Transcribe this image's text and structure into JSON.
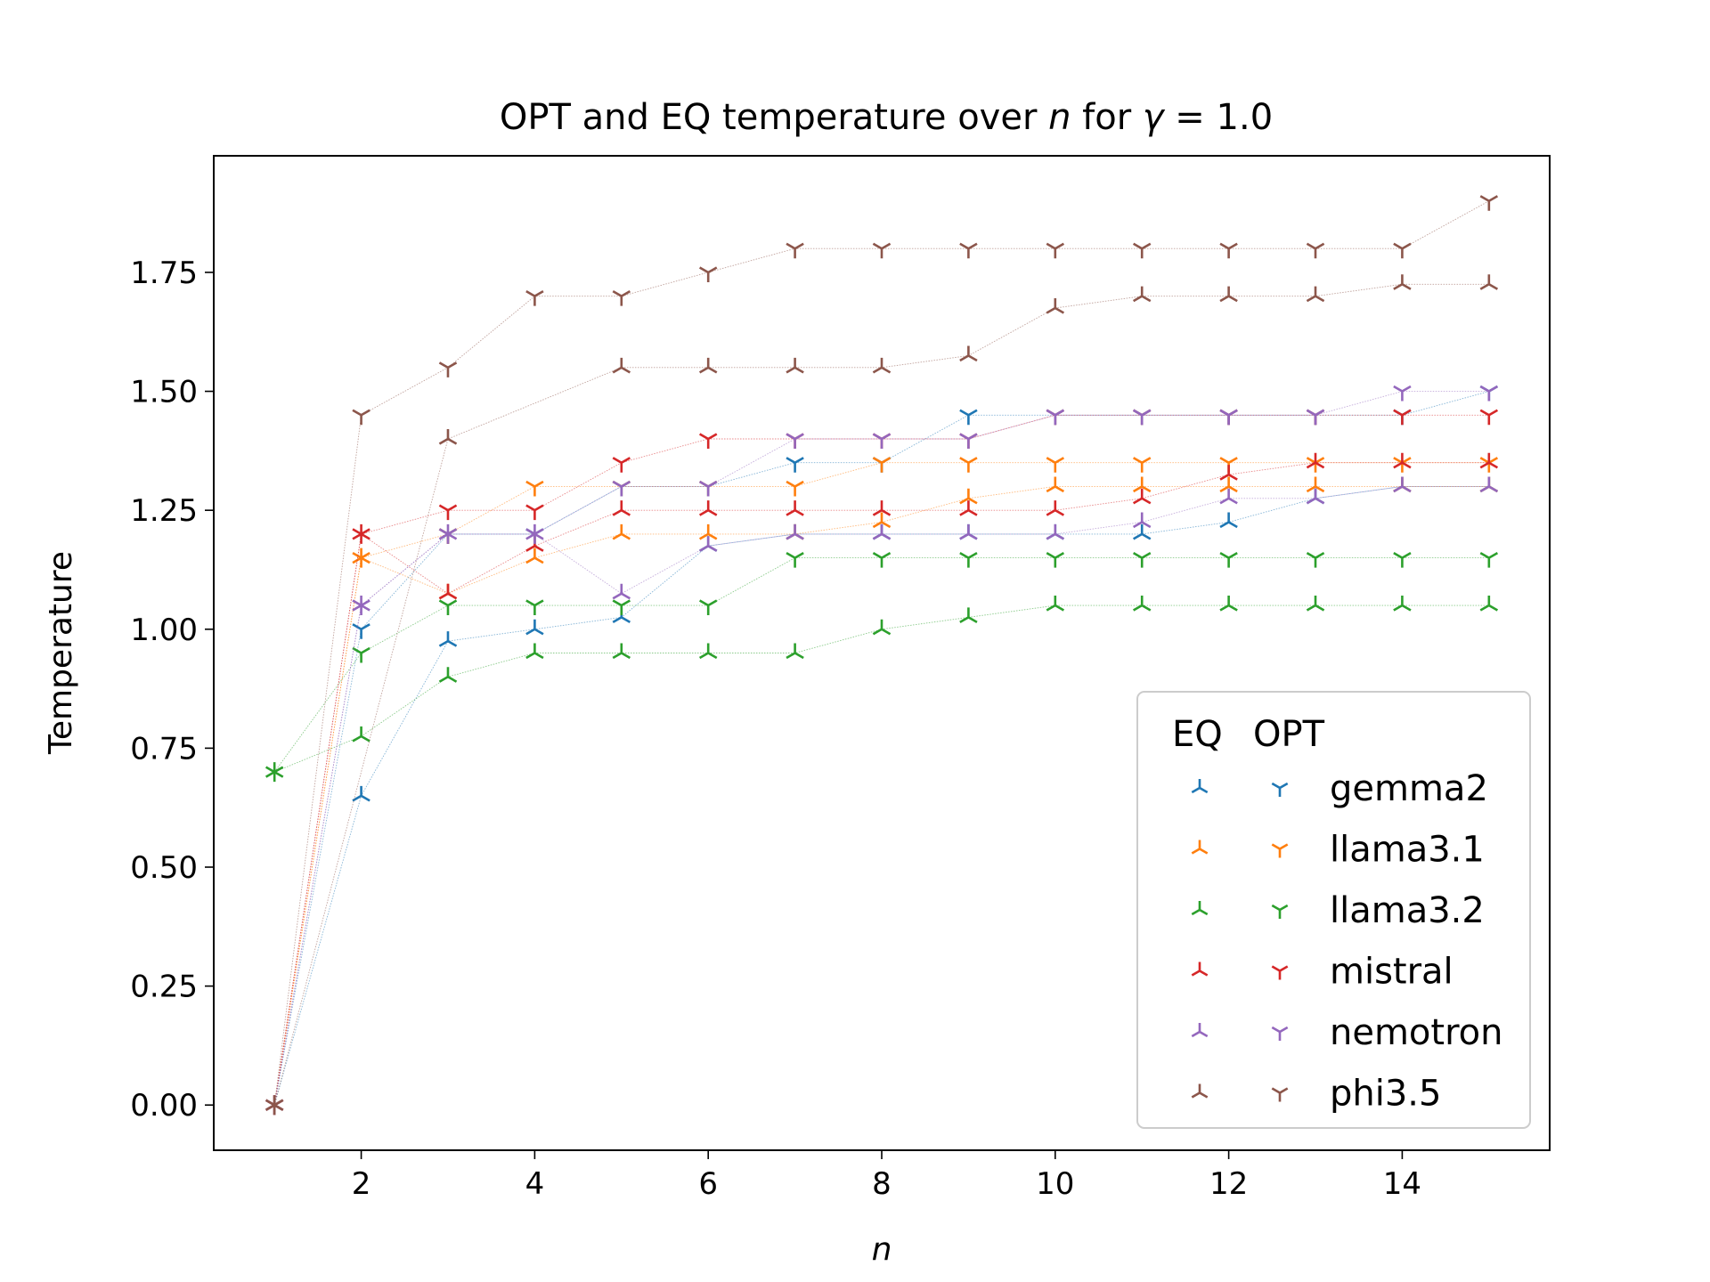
{
  "chart_data": {
    "type": "line",
    "title": "OPT and EQ temperature over n for γ = 1.0",
    "title_parts": {
      "prefix": "OPT and EQ temperature over ",
      "n_symbol": "n",
      "for_text": " for ",
      "gamma_symbol": "γ",
      "equals_value": " = 1.0"
    },
    "xlabel": "n",
    "ylabel": "Temperature",
    "xlim": [
      0.3,
      15.7
    ],
    "ylim": [
      -0.095,
      1.995
    ],
    "xticks": [
      2,
      4,
      6,
      8,
      10,
      12,
      14
    ],
    "xtick_labels": [
      "2",
      "4",
      "6",
      "8",
      "10",
      "12",
      "14"
    ],
    "yticks": [
      0,
      0.25,
      0.5,
      0.75,
      1.0,
      1.25,
      1.5,
      1.75
    ],
    "ytick_labels": [
      "0.00",
      "0.25",
      "0.50",
      "0.75",
      "1.00",
      "1.25",
      "1.50",
      "1.75"
    ],
    "grid": false,
    "legend": {
      "position": "lower-right",
      "col_headers": [
        "EQ",
        "OPT"
      ],
      "entries": [
        "gemma2",
        "llama3.1",
        "llama3.2",
        "mistral",
        "nemotron",
        "phi3.5"
      ]
    },
    "models": [
      {
        "name": "gemma2",
        "color": "#1f77b4",
        "x": [
          1,
          2,
          3,
          4,
          5,
          6,
          7,
          8,
          9,
          10,
          11,
          12,
          13,
          14,
          15
        ],
        "eq": [
          0,
          0.65,
          0.975,
          1.0,
          1.025,
          1.175,
          1.2,
          1.2,
          1.2,
          1.2,
          1.2,
          1.225,
          1.275,
          1.3,
          1.3
        ],
        "opt": [
          0,
          1.0,
          1.2,
          1.2,
          1.3,
          1.3,
          1.35,
          1.35,
          1.45,
          1.45,
          1.45,
          1.45,
          1.45,
          1.45,
          1.5
        ]
      },
      {
        "name": "llama3.1",
        "color": "#ff7f0e",
        "x": [
          1,
          2,
          3,
          4,
          5,
          6,
          7,
          8,
          9,
          10,
          11,
          12,
          13,
          14,
          15
        ],
        "eq": [
          0,
          1.15,
          1.075,
          1.15,
          1.2,
          1.2,
          1.2,
          1.225,
          1.275,
          1.3,
          1.3,
          1.3,
          1.3,
          1.3,
          1.3
        ],
        "opt": [
          0,
          1.15,
          1.2,
          1.3,
          1.3,
          1.3,
          1.3,
          1.35,
          1.35,
          1.35,
          1.35,
          1.35,
          1.35,
          1.35,
          1.35
        ]
      },
      {
        "name": "llama3.2",
        "color": "#2ca02c",
        "x": [
          1,
          2,
          3,
          4,
          5,
          6,
          7,
          8,
          9,
          10,
          11,
          12,
          13,
          14,
          15
        ],
        "eq": [
          0.7,
          0.775,
          0.9,
          0.95,
          0.95,
          0.95,
          0.95,
          1.0,
          1.025,
          1.05,
          1.05,
          1.05,
          1.05,
          1.05,
          1.05
        ],
        "opt": [
          0.7,
          0.95,
          1.05,
          1.05,
          1.05,
          1.05,
          1.15,
          1.15,
          1.15,
          1.15,
          1.15,
          1.15,
          1.15,
          1.15,
          1.15
        ]
      },
      {
        "name": "mistral",
        "color": "#d62728",
        "x": [
          1,
          2,
          3,
          4,
          5,
          6,
          7,
          8,
          9,
          10,
          11,
          12,
          13,
          14,
          15
        ],
        "eq": [
          0,
          1.2,
          1.075,
          1.175,
          1.25,
          1.25,
          1.25,
          1.25,
          1.25,
          1.25,
          1.275,
          1.325,
          1.35,
          1.35,
          1.35
        ],
        "opt": [
          0,
          1.2,
          1.25,
          1.25,
          1.35,
          1.4,
          1.4,
          1.4,
          1.4,
          1.45,
          1.45,
          1.45,
          1.45,
          1.45,
          1.45
        ]
      },
      {
        "name": "nemotron",
        "color": "#9467bd",
        "x": [
          1,
          2,
          3,
          4,
          5,
          6,
          7,
          8,
          9,
          10,
          11,
          12,
          13,
          14,
          15
        ],
        "eq": [
          0,
          1.05,
          1.2,
          1.2,
          1.075,
          1.175,
          1.2,
          1.2,
          1.2,
          1.2,
          1.225,
          1.275,
          1.275,
          1.3,
          1.3
        ],
        "opt": [
          0,
          1.05,
          1.2,
          1.2,
          1.3,
          1.3,
          1.4,
          1.4,
          1.4,
          1.45,
          1.45,
          1.45,
          1.45,
          1.5,
          1.5
        ]
      },
      {
        "name": "phi3.5",
        "color": "#8c564b",
        "x": [
          1,
          2,
          3,
          4,
          5,
          6,
          7,
          8,
          9,
          10,
          11,
          12,
          13,
          14,
          15
        ],
        "eq": [
          0,
          null,
          1.4,
          null,
          1.55,
          1.55,
          1.55,
          1.55,
          1.575,
          1.675,
          1.7,
          1.7,
          1.7,
          1.725,
          1.725
        ],
        "opt": [
          0,
          1.45,
          1.55,
          1.7,
          1.7,
          1.75,
          1.8,
          1.8,
          1.8,
          1.8,
          1.8,
          1.8,
          1.8,
          1.8,
          1.9
        ]
      }
    ]
  }
}
